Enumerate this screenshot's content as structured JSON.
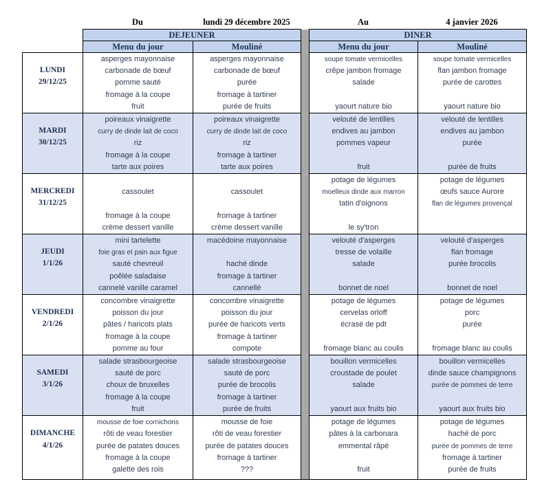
{
  "period": {
    "du_label": "Du",
    "du_value": "lundi 29 décembre 2025",
    "au_label": "Au",
    "au_value": "4 janvier 2026"
  },
  "table": {
    "sections": [
      {
        "title": "DEJEUNER",
        "columns": [
          "Menu du jour",
          "Mouliné"
        ]
      },
      {
        "title": "DINER",
        "columns": [
          "Menu du jour",
          "Mouliné"
        ]
      }
    ],
    "days": [
      {
        "name": "LUNDI",
        "date": "29/12/25",
        "dejeuner_menu": [
          "asperges mayonnaise",
          "carbonade de bœuf",
          "pomme sauté",
          "fromage à la coupe",
          "fruit"
        ],
        "dejeuner_mouline": [
          "asperges mayonnaise",
          "carbonade de bœuf",
          "purée",
          "fromage à tartiner",
          "purée de fruits"
        ],
        "diner_menu": [
          "soupe tomate vermicelles",
          "crêpe jambon fromage",
          "salade",
          "",
          "yaourt nature bio"
        ],
        "diner_mouline": [
          "soupe tomate vermicelles",
          "flan jambon fromage",
          "purée de carottes",
          "",
          "yaourt nature bio"
        ]
      },
      {
        "name": "MARDI",
        "date": "30/12/25",
        "dejeuner_menu": [
          "poireaux vinaigrette",
          "curry de dinde lait de coco",
          "riz",
          "fromage à la coupe",
          "tarte aux poires"
        ],
        "dejeuner_mouline": [
          "poireaux vinaigrette",
          "curry de dinde lait de coco",
          "riz",
          "fromage à tartiner",
          "tarte aux poires"
        ],
        "diner_menu": [
          "velouté de lentilles",
          "endives au jambon",
          "pommes vapeur",
          "",
          "fruit"
        ],
        "diner_mouline": [
          "velouté de lentilles",
          "endives au jambon",
          "purée",
          "",
          "purée de fruits"
        ]
      },
      {
        "name": "MERCREDI",
        "date": "31/12/25",
        "dejeuner_menu": [
          "",
          "cassoulet",
          "",
          "fromage à la coupe",
          "crème dessert vanille"
        ],
        "dejeuner_mouline": [
          "",
          "cassoulet",
          "",
          "fromage à tartiner",
          "crème dessert vanille"
        ],
        "diner_menu": [
          "potage de légumes",
          "moelleux dinde aux marron",
          "tatin d'oignons",
          "",
          "le sy'tron"
        ],
        "diner_mouline": [
          "potage de légumes",
          "œufs sauce Aurore",
          "flan de légumes provençal",
          "",
          ""
        ]
      },
      {
        "name": "JEUDI",
        "date": "1/1/26",
        "dejeuner_menu": [
          "mini tartelette",
          "foie gras et pain aux figue",
          "sauté chevreuil",
          "poêlée saladaise",
          "cannelé vanille caramel"
        ],
        "dejeuner_mouline": [
          "macédoine mayonnaise",
          "",
          "haché dinde",
          "fromage à tartiner",
          "cannellé"
        ],
        "diner_menu": [
          "velouté d'asperges",
          "tresse de volaille",
          "salade",
          "",
          "bonnet de noel"
        ],
        "diner_mouline": [
          "velouté d'asperges",
          "flan fromage",
          "purée brocolis",
          "",
          "bonnet de noel"
        ]
      },
      {
        "name": "VENDREDI",
        "date": "2/1/26",
        "dejeuner_menu": [
          "concombre vinaigrette",
          "poisson du jour",
          "pâtes / haricots plats",
          "fromage à la coupe",
          "pomme au four"
        ],
        "dejeuner_mouline": [
          "concombre vinaigrette",
          "poisson du jour",
          "purée de haricots verts",
          "fromage à tartiner",
          "compote"
        ],
        "diner_menu": [
          "potage de légumes",
          "cervelas orloff",
          "écrasé de pdt",
          "",
          "fromage blanc au coulis"
        ],
        "diner_mouline": [
          "potage de légumes",
          "porc",
          "purée",
          "",
          "fromage blanc au coulis"
        ]
      },
      {
        "name": "SAMEDI",
        "date": "3/1/26",
        "dejeuner_menu": [
          "salade strasbourgeoise",
          "sauté de porc",
          "choux de bruxelles",
          "fromage à la coupe",
          "fruit"
        ],
        "dejeuner_mouline": [
          "salade strasbourgeoise",
          "sauté de porc",
          "purée de brocolis",
          "fromage à tartiner",
          "purée de fruits"
        ],
        "diner_menu": [
          "bouillon vermicelles",
          "croustade de poulet",
          "salade",
          "",
          "yaourt aux fruits bio"
        ],
        "diner_mouline": [
          "bouillon vermicelles",
          "dinde sauce champignons",
          "purée de pommes de terre",
          "",
          "yaourt aux fruits bio"
        ]
      },
      {
        "name": "DIMANCHE",
        "date": "4/1/26",
        "dejeuner_menu": [
          "mousse de foie cornichons",
          "rôti de veau forestier",
          "purée de patates douces",
          "fromage à la coupe",
          "galette des rois"
        ],
        "dejeuner_mouline": [
          "mousse de foie",
          "rôti de veau forestier",
          "purée de patates douces",
          "fromage à tartiner",
          "???"
        ],
        "diner_menu": [
          "potage de légumes",
          "pâtes à la carbonara",
          "emmental râpé",
          "",
          "fruit"
        ],
        "diner_mouline": [
          "potage de légumes",
          "haché de porc",
          "purée de pommes de terre",
          "fromage à tartiner",
          "purée de fruits"
        ]
      }
    ]
  },
  "colors": {
    "header_fill": "#c3d3ee",
    "alt_row_fill": "#d8e0f2",
    "divider_gray": "#a8a8a8",
    "heading_text": "#1f3055"
  }
}
